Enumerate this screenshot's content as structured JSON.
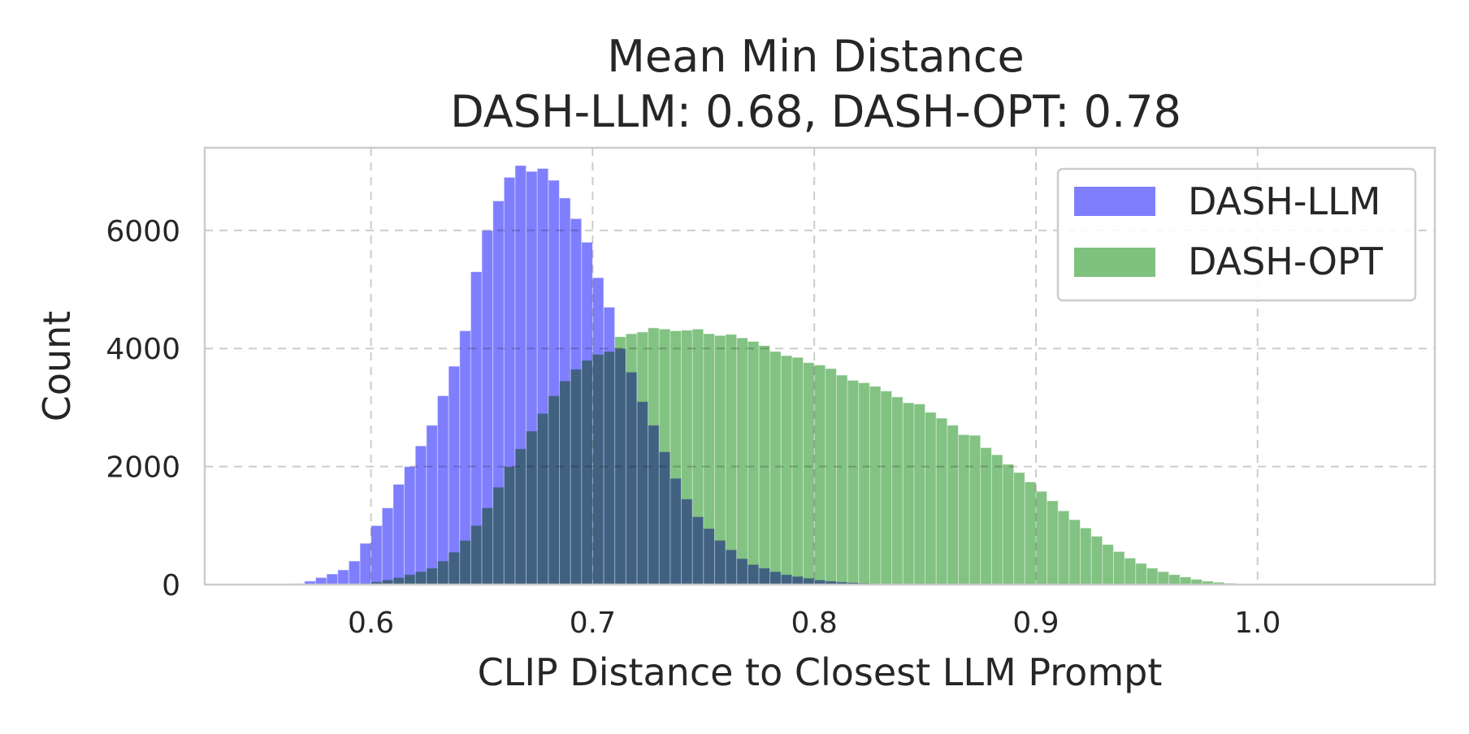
{
  "chart_data": {
    "type": "bar",
    "title": "Mean Min Distance",
    "subtitle": "DASH-LLM: 0.68, DASH-OPT: 0.78",
    "xlabel": "CLIP Distance to Closest LLM Prompt",
    "ylabel": "Count",
    "xlim": [
      0.525,
      1.08
    ],
    "ylim": [
      0,
      7400
    ],
    "xticks": [
      0.6,
      0.7,
      0.8,
      0.9,
      1.0
    ],
    "xtick_labels": [
      "0.6",
      "0.7",
      "0.8",
      "0.9",
      "1.0"
    ],
    "yticks": [
      0,
      2000,
      4000,
      6000
    ],
    "ytick_labels": [
      "0",
      "2000",
      "4000",
      "6000"
    ],
    "grid": true,
    "legend_position": "top-right",
    "bin_width": 0.005,
    "series": [
      {
        "name": "DASH-LLM",
        "color": "#7f7ffd",
        "bin_start": 0.56,
        "values": [
          10,
          20,
          60,
          120,
          180,
          250,
          400,
          700,
          1000,
          1300,
          1700,
          2000,
          2350,
          2700,
          3200,
          3700,
          4300,
          5300,
          6000,
          6500,
          6900,
          7100,
          7000,
          7050,
          6850,
          6550,
          6200,
          5800,
          5200,
          4700,
          4000,
          3600,
          3100,
          2700,
          2250,
          1800,
          1450,
          1150,
          950,
          750,
          590,
          440,
          340,
          280,
          220,
          170,
          140,
          110,
          80,
          60,
          45,
          35,
          25,
          15,
          10,
          5,
          3,
          2
        ]
      },
      {
        "name": "DASH-OPT",
        "color": "#7fc17f",
        "bin_start": 0.56,
        "values": [
          0,
          0,
          0,
          0,
          0,
          0,
          10,
          20,
          50,
          80,
          120,
          170,
          220,
          280,
          400,
          550,
          750,
          1000,
          1300,
          1650,
          2000,
          2300,
          2600,
          2900,
          3200,
          3450,
          3650,
          3800,
          3900,
          3950,
          4200,
          4250,
          4280,
          4350,
          4330,
          4300,
          4310,
          4330,
          4250,
          4220,
          4240,
          4180,
          4120,
          4050,
          3950,
          3880,
          3850,
          3760,
          3720,
          3660,
          3550,
          3460,
          3420,
          3360,
          3280,
          3180,
          3080,
          3060,
          2920,
          2820,
          2700,
          2540,
          2530,
          2320,
          2200,
          2040,
          1900,
          1740,
          1580,
          1420,
          1250,
          1100,
          960,
          820,
          680,
          560,
          450,
          360,
          280,
          220,
          170,
          130,
          90,
          60,
          40,
          25,
          15,
          10,
          5
        ]
      }
    ]
  }
}
